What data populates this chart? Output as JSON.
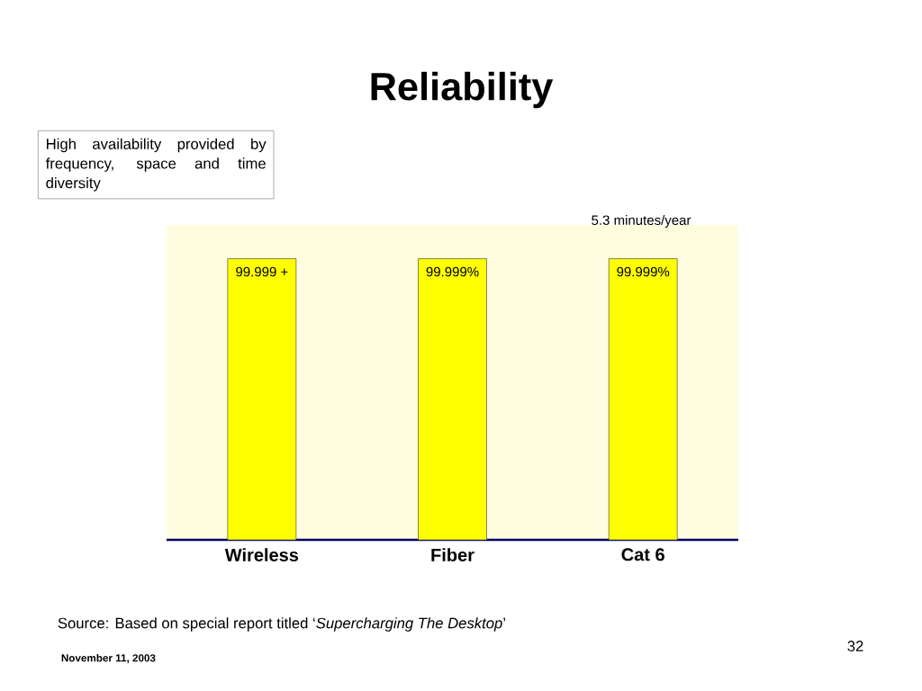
{
  "chart_data": {
    "type": "bar",
    "title": "Reliability",
    "categories": [
      "Wireless",
      "Fiber",
      "Cat 6"
    ],
    "values": [
      99.999,
      99.999,
      99.999
    ],
    "value_labels": [
      "99.999 +",
      "99.999%",
      "99.999%"
    ],
    "tick_labels": "x",
    "color": "#ffff00",
    "annotations": [
      "High availability provided by frequency, space and time diversity",
      "5.3 minutes/year",
      "Source: Based on special report titled ‘*Supercharging The Desktop*’",
      "November 11, 2003",
      "32"
    ]
  }
}
